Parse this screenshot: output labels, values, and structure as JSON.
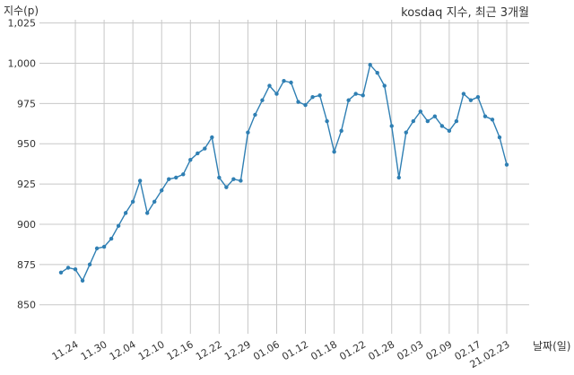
{
  "chart_data": {
    "type": "line",
    "title": "kosdaq 지수, 최근 3개월",
    "xlabel": "날짜(일)",
    "ylabel": "지수(p)",
    "ylim": [
      832,
      1027
    ],
    "y_ticks": [
      850,
      875,
      900,
      925,
      950,
      975,
      1000,
      1025
    ],
    "y_tick_labels": [
      "850",
      "875",
      "900",
      "925",
      "950",
      "975",
      "1,000",
      "1,025"
    ],
    "x_tick_labels": [
      "11.24",
      "11.30",
      "12.04",
      "12.10",
      "12.16",
      "12.22",
      "12.29",
      "01.06",
      "01.12",
      "01.18",
      "01.22",
      "01.28",
      "02.03",
      "02.09",
      "02.17",
      "21.02.23"
    ],
    "x_tick_positions": [
      2,
      6,
      10,
      14,
      18,
      22,
      26,
      30,
      34,
      38,
      42,
      46,
      50,
      54,
      58,
      62
    ],
    "x_count": 63,
    "grid": true,
    "series": [
      {
        "name": "",
        "color": "#2f7fb3",
        "values": [
          870,
          873,
          872,
          865,
          875,
          885,
          886,
          891,
          899,
          907,
          914,
          927,
          907,
          914,
          921,
          928,
          929,
          931,
          940,
          944,
          947,
          954,
          929,
          923,
          928,
          927,
          957,
          968,
          977,
          986,
          981,
          989,
          988,
          976,
          974,
          979,
          980,
          964,
          945,
          958,
          977,
          981,
          980,
          999,
          994,
          986,
          961,
          929,
          957,
          964,
          970,
          964,
          967,
          961,
          958,
          964,
          981,
          977,
          979,
          967,
          965,
          954,
          937
        ]
      }
    ]
  }
}
